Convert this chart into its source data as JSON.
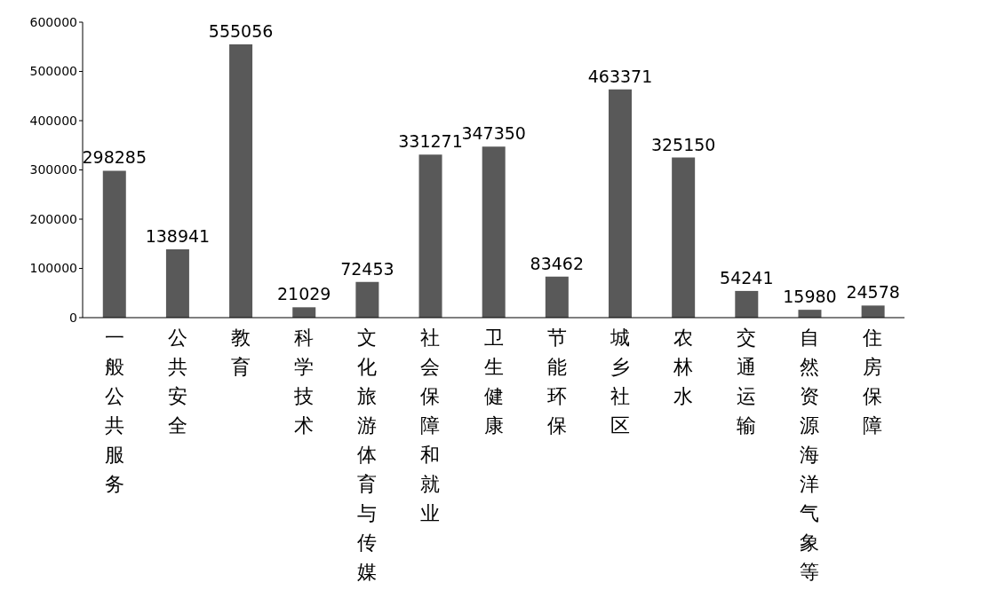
{
  "chart_data": {
    "type": "bar",
    "categories": [
      "一般公共服务",
      "公共安全",
      "教育",
      "科学技术",
      "文化旅游体育与传媒",
      "社会保障和就业",
      "卫生健康",
      "节能环保",
      "城乡社区",
      "农林水",
      "交通运输",
      "自然资源海洋气象等",
      "住房保障"
    ],
    "values": [
      298285,
      138941,
      555056,
      21029,
      72453,
      331271,
      347350,
      83462,
      463371,
      325150,
      54241,
      15980,
      24578
    ],
    "color": "#595959",
    "ylim": [
      0,
      600000
    ],
    "yticks": [
      0,
      100000,
      200000,
      300000,
      400000,
      500000,
      600000
    ],
    "data_labels": true
  }
}
